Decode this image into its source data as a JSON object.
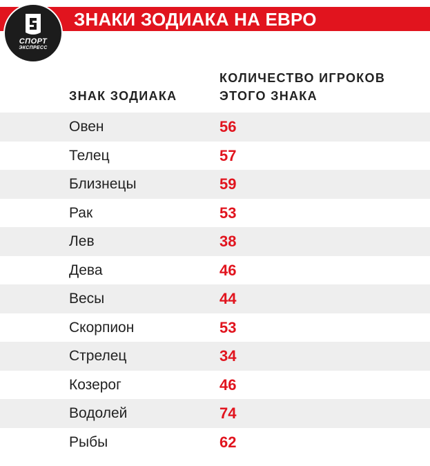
{
  "header": {
    "title": "ЗНАКИ ЗОДИАКА НА ЕВРО"
  },
  "logo": {
    "main_text": "СПОРТ",
    "sub_text": "ЭКСПРЕСС"
  },
  "table": {
    "col_sign_header": "ЗНАК ЗОДИАКА",
    "col_count_header_line1": "КОЛИЧЕСТВО ИГРОКОВ",
    "col_count_header_line2": "ЭТОГО ЗНАКА",
    "rows": [
      {
        "sign": "Овен",
        "count": "56"
      },
      {
        "sign": "Телец",
        "count": "57"
      },
      {
        "sign": "Близнецы",
        "count": "59"
      },
      {
        "sign": "Рак",
        "count": "53"
      },
      {
        "sign": "Лев",
        "count": "38"
      },
      {
        "sign": "Дева",
        "count": "46"
      },
      {
        "sign": "Весы",
        "count": "44"
      },
      {
        "sign": "Скорпион",
        "count": "53"
      },
      {
        "sign": "Стрелец",
        "count": "34"
      },
      {
        "sign": "Козерог",
        "count": "46"
      },
      {
        "sign": "Водолей",
        "count": "74"
      },
      {
        "sign": "Рыбы",
        "count": "62"
      }
    ]
  },
  "colors": {
    "accent": "#e1141e",
    "row_shade": "#eeeeee",
    "text": "#222222"
  }
}
